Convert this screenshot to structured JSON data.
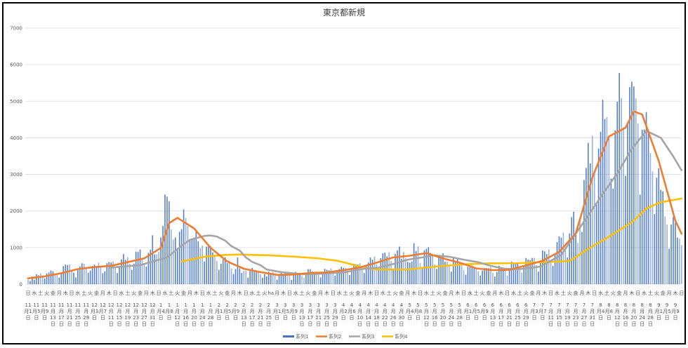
{
  "chart_data": {
    "type": "bar+line",
    "title": "東京都新規",
    "ylim": [
      0,
      7000
    ],
    "yticks": [
      "0",
      "1000",
      "2000",
      "3000",
      "4000",
      "5000",
      "6000",
      "7000"
    ],
    "grid": true,
    "legend_position": "bottom",
    "colors": {
      "series1": "#4472C4",
      "series2": "#ED7D31",
      "series3": "#A5A5A5",
      "series4": "#FFC000",
      "grid": "#D9D9D9",
      "text": "#595959"
    },
    "weekday_labels": [
      "日",
      "水",
      "土",
      "火",
      "金",
      "月",
      "木",
      "日",
      "水",
      "土",
      "火",
      "金",
      "月",
      "木",
      "日",
      "水",
      "土",
      "火",
      "金",
      "月",
      "木",
      "日",
      "水",
      "土",
      "火",
      "金",
      "月",
      "木",
      "日",
      "水",
      "土",
      "火",
      "金",
      "月",
      "木",
      "日",
      "水",
      "土",
      "火",
      "ha",
      "月",
      "木",
      "日",
      "水",
      "土",
      "火",
      "金",
      "月",
      "木",
      "日",
      "水",
      "土",
      "火",
      "金",
      "月",
      "木",
      "日",
      "水",
      "土",
      "火",
      "金",
      "月",
      "木",
      "日",
      "水",
      "土",
      "火",
      "金",
      "月",
      "木",
      "日",
      "水",
      "土",
      "火",
      "金",
      "月",
      "木",
      "日",
      "水",
      "土",
      "火",
      "金",
      "月",
      "木",
      "日",
      "水",
      "土",
      "火",
      "金",
      "月",
      "木",
      "日",
      "水",
      "土",
      "火",
      "金",
      "月",
      "木",
      "日",
      "水",
      "土",
      "火",
      "金",
      "月",
      "木",
      "日"
    ],
    "date_labels": [
      "11月1日",
      "11月5日",
      "11月9日",
      "11月13日",
      "11月17日",
      "11月21日",
      "11月25日",
      "11月29日",
      "12月3日",
      "12月7日",
      "12月11日",
      "12月15日",
      "12月19日",
      "12月23日",
      "12月27日",
      "12月31日",
      "1月4日",
      "1月8日",
      "1月12日",
      "1月16日",
      "1月20日",
      "1月24日",
      "1月28日",
      "2月1日",
      "2月5日",
      "2月9日",
      "2月13日",
      "2月17日",
      "2月21日",
      "2月25日",
      "3月1日",
      "3月5日",
      "3月9日",
      "3月13日",
      "3月17日",
      "3月21日",
      "3月25日",
      "3月29日",
      "4月2日",
      "4月6日",
      "4月10日",
      "4月14日",
      "4月18日",
      "4月22日",
      "4月26日",
      "4月30日",
      "5月4日",
      "5月8日",
      "5月12日",
      "5月16日",
      "5月20日",
      "5月24日",
      "5月28日",
      "6月1日",
      "6月5日",
      "6月9日",
      "6月13日",
      "6月17日",
      "6月21日",
      "6月25日",
      "6月29日",
      "7月3日",
      "7月7日",
      "7月11日",
      "7月15日",
      "7月19日",
      "7月23日",
      "7月27日",
      "7月31日",
      "8月4日",
      "8月8日",
      "8月12日",
      "8月16日",
      "8月20日",
      "8月24日",
      "8月28日",
      "9月1日",
      "9月5日",
      "9月9日"
    ],
    "series": [
      {
        "name": "系列1",
        "kind": "bar",
        "values": [
          116,
          87,
          209,
          122,
          269,
          242,
          294,
          189,
          157,
          293,
          317,
          374,
          352,
          255,
          255,
          180,
          298,
          493,
          534,
          522,
          539,
          391,
          314,
          186,
          401,
          481,
          570,
          561,
          418,
          311,
          372,
          500,
          533,
          449,
          584,
          480,
          299,
          352,
          572,
          602,
          595,
          621,
          480,
          305,
          460,
          678,
          822,
          664,
          736,
          556,
          392,
          563,
          888,
          884,
          949,
          708,
          556,
          481,
          856,
          944,
          1337,
          814,
          816,
          884,
          1278,
          1591,
          2447,
          2392,
          2268,
          1494,
          1219,
          1278,
          970,
          1433,
          1502,
          2044,
          1809,
          1592,
          1204,
          1240,
          1274,
          1471,
          1175,
          986,
          1056,
          618,
          1026,
          1064,
          1035,
          868,
          769,
          633,
          393,
          556,
          676,
          734,
          577,
          639,
          429,
          276,
          412,
          727,
          434,
          307,
          369,
          371,
          178,
          378,
          445,
          353,
          353,
          327,
          272,
          178,
          275,
          213,
          340,
          270,
          329,
          232,
          121,
          232,
          316,
          279,
          301,
          293,
          237,
          116,
          290,
          335,
          304,
          293,
          239,
          175,
          300,
          409,
          409,
          348,
          303,
          342,
          256,
          187,
          337,
          420,
          394,
          376,
          430,
          313,
          234,
          364,
          414,
          475,
          446,
          446,
          355,
          249,
          399,
          555,
          545,
          537,
          570,
          421,
          306,
          510,
          591,
          729,
          667,
          759,
          543,
          405,
          711,
          843,
          861,
          759,
          876,
          635,
          425,
          828,
          925,
          1027,
          697,
          879,
          708,
          609,
          591,
          621,
          1121,
          907,
          1032,
          573,
          419,
          925,
          969,
          1010,
          854,
          772,
          542,
          419,
          732,
          766,
          843,
          614,
          618,
          535,
          340,
          743,
          597,
          684,
          614,
          539,
          386,
          258,
          471,
          487,
          508,
          472,
          436,
          351,
          235,
          369,
          440,
          439,
          435,
          467,
          304,
          209,
          337,
          501,
          452,
          453,
          388,
          236,
          376,
          619,
          570,
          562,
          562,
          386,
          317,
          476,
          714,
          673,
          657,
          716,
          716,
          518,
          342,
          593,
          920,
          896,
          822,
          950,
          614,
          502,
          830,
          1149,
          1308,
          1271,
          1410,
          1008,
          727,
          1387,
          1832,
          1979,
          1359,
          1128,
          1763,
          1429,
          2848,
          3177,
          3865,
          3300,
          4058,
          3058,
          2195,
          3709,
          4166,
          5042,
          4515,
          4566,
          4066,
          2884,
          2612,
          4200,
          4989,
          5773,
          5094,
          4295,
          2962,
          4377,
          5386,
          5534,
          5405,
          5074,
          4392,
          2447,
          4220,
          4228,
          4704,
          4227,
          3581,
          3081,
          1915,
          2909,
          3168,
          2579,
          2539,
          1853,
          1628,
          968,
          1629,
          1834,
          1675,
          1273,
          1242,
          1067
        ]
      },
      {
        "name": "系列2",
        "kind": "line",
        "points": [
          [
            "11/1",
            160
          ],
          [
            "11/9",
            212
          ],
          [
            "11/17",
            300
          ],
          [
            "11/25",
            412
          ],
          [
            "12/3",
            466
          ],
          [
            "12/11",
            503
          ],
          [
            "12/19",
            603
          ],
          [
            "12/27",
            706
          ],
          [
            "1/4",
            990
          ],
          [
            "1/8",
            1668
          ],
          [
            "1/12",
            1813
          ],
          [
            "1/20",
            1524
          ],
          [
            "1/28",
            994
          ],
          [
            "2/5",
            620
          ],
          [
            "2/13",
            422
          ],
          [
            "2/21",
            330
          ],
          [
            "3/1",
            254
          ],
          [
            "3/9",
            262
          ],
          [
            "3/17",
            304
          ],
          [
            "3/25",
            320
          ],
          [
            "4/2",
            382
          ],
          [
            "4/10",
            459
          ],
          [
            "4/18",
            586
          ],
          [
            "4/26",
            730
          ],
          [
            "5/4",
            777
          ],
          [
            "5/12",
            849
          ],
          [
            "5/20",
            704
          ],
          [
            "5/28",
            590
          ],
          [
            "6/5",
            431
          ],
          [
            "6/13",
            384
          ],
          [
            "6/21",
            392
          ],
          [
            "6/29",
            512
          ],
          [
            "7/7",
            637
          ],
          [
            "7/15",
            882
          ],
          [
            "7/23",
            1386
          ],
          [
            "7/31",
            2920
          ],
          [
            "8/8",
            4037
          ],
          [
            "8/16",
            4275
          ],
          [
            "8/20",
            4722
          ],
          [
            "8/24",
            4637
          ],
          [
            "9/1",
            3369
          ],
          [
            "9/9",
            1732
          ],
          [
            "9/12",
            1380
          ]
        ]
      },
      {
        "name": "系列3",
        "kind": "line",
        "points": [
          [
            "12/10",
            450
          ],
          [
            "12/25",
            520
          ],
          [
            "1/7",
            730
          ],
          [
            "1/14",
            1050
          ],
          [
            "1/18",
            1210
          ],
          [
            "1/25",
            1320
          ],
          [
            "1/28",
            1330
          ],
          [
            "1/31",
            1300
          ],
          [
            "2/4",
            1190
          ],
          [
            "2/7",
            1040
          ],
          [
            "2/11",
            920
          ],
          [
            "2/14",
            730
          ],
          [
            "2/17",
            610
          ],
          [
            "2/21",
            520
          ],
          [
            "2/24",
            400
          ],
          [
            "3/3",
            330
          ],
          [
            "3/10",
            290
          ],
          [
            "3/16",
            270
          ],
          [
            "3/23",
            290
          ],
          [
            "4/2",
            320
          ],
          [
            "4/12",
            420
          ],
          [
            "4/19",
            450
          ],
          [
            "4/26",
            550
          ],
          [
            "5/3",
            670
          ],
          [
            "5/10",
            730
          ],
          [
            "5/15",
            790
          ],
          [
            "5/23",
            750
          ],
          [
            "5/30",
            670
          ],
          [
            "6/6",
            600
          ],
          [
            "6/12",
            500
          ],
          [
            "6/19",
            420
          ],
          [
            "6/26",
            410
          ],
          [
            "7/6",
            480
          ],
          [
            "7/16",
            800
          ],
          [
            "7/26",
            1630
          ],
          [
            "8/5",
            2460
          ],
          [
            "8/12",
            3030
          ],
          [
            "8/19",
            3690
          ],
          [
            "8/26",
            4190
          ],
          [
            "9/2",
            4000
          ],
          [
            "9/8",
            3490
          ],
          [
            "9/12",
            3110
          ]
        ]
      },
      {
        "name": "系列4",
        "kind": "line",
        "points": [
          [
            "1/14",
            620
          ],
          [
            "1/25",
            750
          ],
          [
            "2/4",
            800
          ],
          [
            "2/11",
            810
          ],
          [
            "2/24",
            790
          ],
          [
            "3/10",
            750
          ],
          [
            "3/20",
            710
          ],
          [
            "3/30",
            640
          ],
          [
            "4/6",
            540
          ],
          [
            "4/12",
            440
          ],
          [
            "4/19",
            400
          ],
          [
            "5/3",
            400
          ],
          [
            "5/16",
            480
          ],
          [
            "5/30",
            540
          ],
          [
            "6/12",
            570
          ],
          [
            "6/26",
            575
          ],
          [
            "7/20",
            630
          ],
          [
            "7/30",
            1000
          ],
          [
            "8/5",
            1190
          ],
          [
            "8/12",
            1440
          ],
          [
            "8/19",
            1690
          ],
          [
            "8/26",
            2070
          ],
          [
            "9/2",
            2240
          ],
          [
            "9/12",
            2340
          ]
        ]
      }
    ]
  }
}
